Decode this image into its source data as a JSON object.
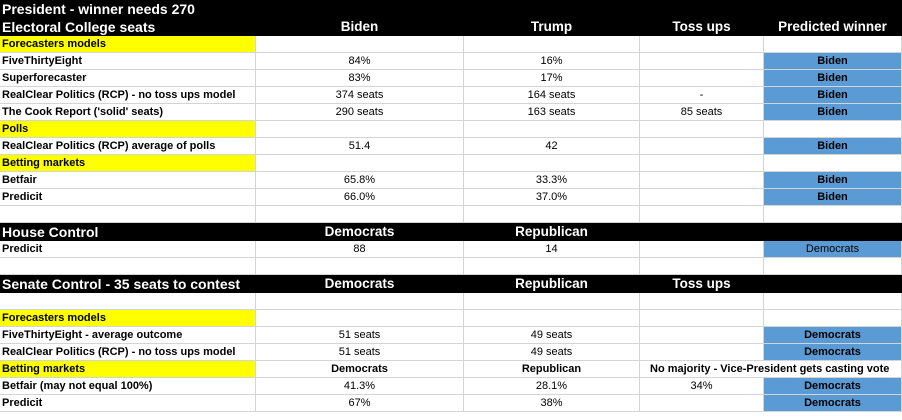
{
  "colors": {
    "header_bg": "#000000",
    "header_text": "#ffffff",
    "section_highlight": "#ffff00",
    "winner_fill": "#5b9bd5",
    "gridline": "#d4d4d4"
  },
  "president": {
    "title": "President - winner needs 270",
    "header": {
      "label": "Electoral College seats",
      "col1": "Biden",
      "col2": "Trump",
      "col3": "Toss ups",
      "col4": "Predicted winner"
    },
    "sections": [
      {
        "label": "Forecasters models",
        "rows": [
          {
            "name": "FiveThirtyEight",
            "c1": "84%",
            "c2": "16%",
            "c3": "",
            "winner": "Biden"
          },
          {
            "name": "Superforecaster",
            "c1": "83%",
            "c2": "17%",
            "c3": "",
            "winner": "Biden"
          },
          {
            "name": "RealClear Politics (RCP) - no toss ups model",
            "c1": "374  seats",
            "c2": "164 seats",
            "c3": "-",
            "winner": "Biden"
          },
          {
            "name": "The Cook Report ('solid' seats)",
            "c1": "290 seats",
            "c2": "163 seats",
            "c3": "85 seats",
            "winner": "Biden"
          }
        ]
      },
      {
        "label": "Polls",
        "rows": [
          {
            "name": "RealClear Politics (RCP) average of polls",
            "c1": "51.4",
            "c2": "42",
            "c3": "",
            "winner": "Biden"
          }
        ]
      },
      {
        "label": "Betting markets",
        "rows": [
          {
            "name": "Betfair",
            "c1": "65.8%",
            "c2": "33.3%",
            "c3": "",
            "winner": "Biden"
          },
          {
            "name": "Predicit",
            "c1": "66.0%",
            "c2": "37.0%",
            "c3": "",
            "winner": "Biden"
          }
        ]
      }
    ]
  },
  "house": {
    "header": {
      "label": "House Control",
      "col1": "Democrats",
      "col2": "Republican"
    },
    "rows": [
      {
        "name": "Predicit",
        "c1": "88",
        "c2": "14",
        "winner": "Democrats"
      }
    ]
  },
  "senate": {
    "header": {
      "label": "Senate Control - 35 seats to contest",
      "col1": "Democrats",
      "col2": "Republican",
      "col3": "Toss ups"
    },
    "forecasters": {
      "label": "Forecasters models",
      "rows": [
        {
          "name": "FiveThirtyEight - average outcome",
          "c1": "51 seats",
          "c2": "49 seats",
          "winner": "Democrats"
        },
        {
          "name": "RealClear Politics (RCP) - no toss ups model",
          "c1": "51 seats",
          "c2": "49 seats",
          "winner": "Democrats"
        }
      ]
    },
    "betting": {
      "label": "Betting markets",
      "sub_col1": "Democrats",
      "sub_col2": "Republican",
      "sub_col3": "No majority - Vice-President gets casting vote",
      "rows": [
        {
          "name": "Betfair (may not equal 100%)",
          "c1": "41.3%",
          "c2": "28.1%",
          "c3": "34%",
          "winner": "Democrats"
        },
        {
          "name": "Predicit",
          "c1": "67%",
          "c2": "38%",
          "c3": "",
          "winner": "Democrats"
        }
      ]
    }
  }
}
